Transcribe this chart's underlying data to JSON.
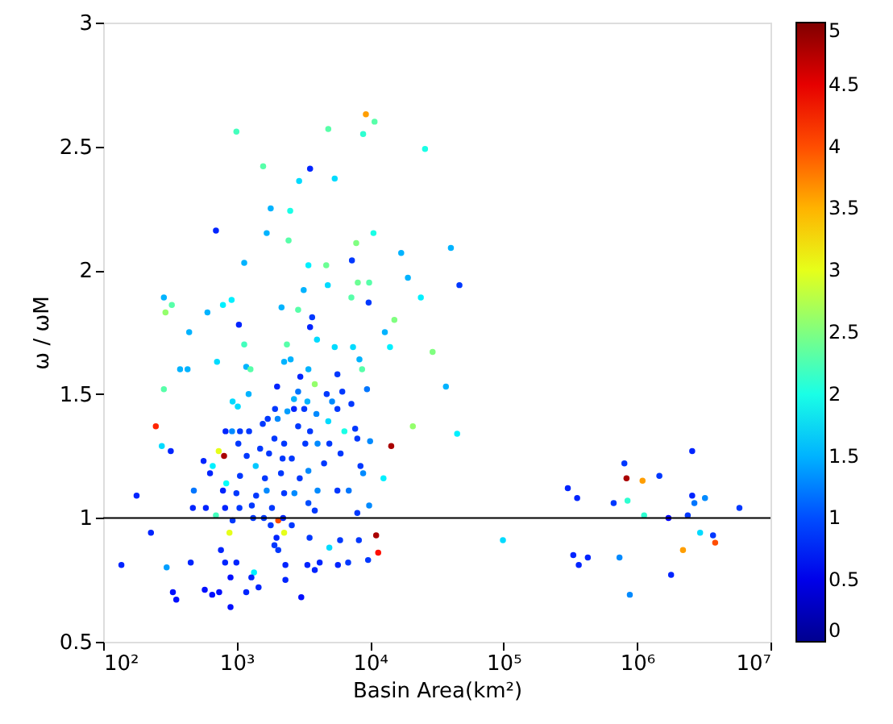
{
  "chart_data": {
    "type": "scatter",
    "xlabel": "Basin Area(km²)",
    "ylabel": "ω / ωM",
    "log": "x",
    "grid": false,
    "marker": "circle",
    "xlim": [
      100,
      10000000
    ],
    "ylim": [
      0.5,
      3
    ],
    "xticks": [
      {
        "value": 100,
        "label": "10²"
      },
      {
        "value": 1000,
        "label": "10³"
      },
      {
        "value": 10000,
        "label": "10⁴"
      },
      {
        "value": 100000,
        "label": "10⁵"
      },
      {
        "value": 1000000,
        "label": "10⁶"
      },
      {
        "value": 10000000,
        "label": "10⁷"
      }
    ],
    "yticks": [
      0.5,
      1,
      1.5,
      2,
      2.5,
      3
    ],
    "clim": [
      0,
      5
    ],
    "cticks": [
      0,
      0.5,
      1,
      1.5,
      2,
      2.5,
      3,
      3.5,
      4,
      4.5,
      5
    ],
    "ref_lines": [
      {
        "axis": "y",
        "value": 1,
        "color": "#000000"
      }
    ],
    "series": [
      {
        "x": [
          9300,
          4860,
          10800,
          8870,
          996,
          25800,
          1580,
          3550,
          2940,
          5430,
          1800,
          2520,
          700,
          1680,
          2450,
          10600,
          7870,
          40300,
          17100,
          7310,
          4690,
          3450,
          1140,
          46700,
          19200,
          4820,
          8090,
          9840,
          3180,
          285,
          327,
          293,
          604,
          790,
          917,
          2170,
          9750,
          7240,
          24000,
          15200,
          1040,
          3550,
          3680,
          2890,
          441,
          1140,
          2380,
          4000,
          5430,
          7450,
          12900,
          14100,
          29400,
          713,
          377,
          429,
          1180,
          1270,
          2270,
          2540,
          3450,
          5690,
          8320,
          8710,
          285,
          3000,
          3850,
          2010,
          37000,
          9480,
          933,
          1020,
          1230,
          2690,
          2890,
          4730,
          6190,
          7240,
          5190,
          3390,
          1940,
          2400,
          2690,
          3210,
          3960,
          5690,
          1710,
          248,
          826,
          924,
          1060,
          1240,
          1570,
          2030,
          2890,
          3550,
          4860,
          6420,
          7730,
          20900,
          44900,
          275,
          321,
          805,
          734,
          1030,
          1500,
          1920,
          2270,
          3270,
          4040,
          4950,
          8020,
          10000,
          14400,
          566,
          662,
          1190,
          1750,
          2210,
          2590,
          1390,
          2150,
          2970,
          3450,
          4520,
          6010,
          8470,
          8870,
          12600,
          632,
          836,
          1060,
          1630,
          178,
          478,
          790,
          996,
          1400,
          1680,
          2270,
          2710,
          4040,
          5690,
          6920,
          470,
          588,
          820,
          1050,
          1300,
          1840,
          3450,
          3850,
          8020,
          9840,
          700,
          933,
          1330,
          2050,
          1600,
          2230,
          884,
          2270,
          228,
          1800,
          2590,
          1990,
          763,
          1920,
          3520,
          4950,
          5960,
          8240,
          11100,
          11500,
          9660,
          2050,
          137,
          299,
          453,
          820,
          996,
          1350,
          2320,
          3390,
          4190,
          5740,
          6850,
          3850,
          900,
          1290,
          2320,
          577,
          740,
          656,
          333,
          353,
          1460,
          1180,
          3050,
          900,
          98900,
          303000,
          356000,
          333000,
          366000,
          428000,
          668000,
          804000,
          834000,
          849000,
          739000,
          883000,
          1100000,
          1130000,
          1470000,
          1720000,
          1800000,
          2210000,
          2400000,
          2590000,
          2590000,
          2690000,
          2970000,
          3230000,
          3710000,
          3850000,
          5850000
        ],
        "values": [
          2.63,
          2.57,
          2.6,
          2.55,
          2.56,
          2.49,
          2.42,
          2.41,
          2.36,
          2.37,
          2.25,
          2.24,
          2.16,
          2.15,
          2.12,
          2.15,
          2.11,
          2.09,
          2.07,
          2.04,
          2.02,
          2.02,
          2.03,
          1.94,
          1.97,
          1.94,
          1.95,
          1.95,
          1.92,
          1.89,
          1.86,
          1.83,
          1.83,
          1.86,
          1.88,
          1.85,
          1.87,
          1.89,
          1.89,
          1.8,
          1.78,
          1.77,
          1.81,
          1.84,
          1.75,
          1.7,
          1.7,
          1.72,
          1.69,
          1.69,
          1.75,
          1.69,
          1.67,
          1.63,
          1.6,
          1.6,
          1.61,
          1.6,
          1.63,
          1.64,
          1.6,
          1.58,
          1.64,
          1.6,
          1.52,
          1.57,
          1.54,
          1.53,
          1.53,
          1.52,
          1.47,
          1.45,
          1.5,
          1.48,
          1.51,
          1.5,
          1.51,
          1.46,
          1.47,
          1.47,
          1.44,
          1.43,
          1.44,
          1.44,
          1.42,
          1.44,
          1.4,
          1.37,
          1.35,
          1.35,
          1.35,
          1.35,
          1.38,
          1.4,
          1.37,
          1.35,
          1.39,
          1.35,
          1.36,
          1.37,
          1.34,
          1.29,
          1.27,
          1.25,
          1.27,
          1.3,
          1.28,
          1.32,
          1.3,
          1.3,
          1.3,
          1.3,
          1.32,
          1.31,
          1.29,
          1.23,
          1.21,
          1.25,
          1.26,
          1.24,
          1.24,
          1.21,
          1.18,
          1.16,
          1.19,
          1.22,
          1.26,
          1.21,
          1.18,
          1.16,
          1.18,
          1.14,
          1.17,
          1.16,
          1.09,
          1.11,
          1.11,
          1.1,
          1.09,
          1.11,
          1.1,
          1.1,
          1.11,
          1.11,
          1.11,
          1.04,
          1.04,
          1.04,
          1.04,
          1.05,
          1.04,
          1.06,
          1.03,
          1.02,
          1.05,
          1.01,
          0.99,
          1.0,
          0.99,
          1.0,
          1.0,
          0.94,
          0.94,
          0.94,
          0.97,
          0.97,
          0.92,
          0.87,
          0.89,
          0.92,
          0.88,
          0.91,
          0.91,
          0.93,
          0.86,
          0.83,
          0.87,
          0.81,
          0.8,
          0.82,
          0.82,
          0.82,
          0.78,
          0.81,
          0.81,
          0.82,
          0.81,
          0.82,
          0.79,
          0.76,
          0.76,
          0.75,
          0.71,
          0.7,
          0.69,
          0.7,
          0.67,
          0.72,
          0.7,
          0.68,
          0.64,
          0.91,
          1.12,
          1.08,
          0.85,
          0.81,
          0.84,
          1.06,
          1.22,
          1.16,
          1.07,
          0.84,
          0.69,
          1.15,
          1.01,
          1.17,
          1.0,
          0.77,
          0.87,
          1.01,
          1.27,
          1.09,
          1.06,
          0.94,
          1.08,
          0.93,
          0.9,
          1.04
        ],
        "cvalues": [
          3.6,
          2.3,
          2.3,
          2.1,
          2.2,
          2.0,
          2.3,
          0.8,
          1.7,
          1.7,
          1.5,
          2.0,
          0.8,
          1.5,
          2.3,
          2.0,
          2.5,
          1.5,
          1.5,
          0.9,
          2.4,
          1.8,
          1.5,
          0.9,
          1.5,
          1.7,
          2.4,
          2.3,
          1.5,
          1.5,
          2.3,
          2.6,
          1.5,
          1.8,
          1.8,
          1.5,
          0.9,
          2.3,
          1.8,
          2.5,
          0.8,
          0.8,
          0.9,
          2.3,
          1.5,
          2.2,
          2.3,
          1.7,
          1.7,
          1.7,
          1.5,
          1.8,
          2.5,
          1.7,
          1.5,
          1.5,
          1.5,
          2.3,
          1.5,
          1.5,
          1.5,
          0.9,
          1.5,
          2.3,
          2.3,
          0.8,
          2.6,
          0.8,
          1.5,
          1.2,
          1.7,
          1.7,
          1.5,
          1.5,
          1.2,
          0.9,
          0.9,
          0.9,
          1.3,
          1.5,
          0.9,
          1.4,
          0.8,
          0.9,
          1.3,
          0.9,
          0.9,
          4.2,
          0.8,
          1.3,
          0.9,
          0.9,
          0.9,
          1.3,
          0.9,
          0.9,
          1.7,
          2.0,
          0.9,
          2.6,
          1.8,
          1.7,
          0.8,
          4.8,
          3.0,
          0.9,
          0.9,
          0.9,
          0.9,
          0.9,
          1.3,
          0.9,
          0.9,
          1.3,
          4.8,
          0.8,
          1.8,
          0.9,
          0.9,
          0.9,
          0.9,
          1.6,
          0.9,
          0.9,
          1.3,
          0.9,
          0.9,
          0.9,
          1.3,
          1.8,
          0.8,
          1.9,
          0.9,
          0.9,
          0.8,
          1.2,
          0.8,
          0.9,
          0.9,
          1.3,
          0.9,
          1.3,
          1.3,
          0.9,
          1.2,
          0.8,
          0.8,
          0.8,
          0.9,
          0.9,
          0.9,
          1.0,
          0.9,
          0.9,
          1.3,
          2.2,
          0.9,
          0.9,
          4.0,
          0.9,
          0.8,
          3.0,
          3.0,
          0.8,
          0.9,
          0.9,
          0.8,
          0.8,
          0.9,
          0.9,
          1.7,
          0.9,
          0.9,
          4.8,
          4.3,
          0.9,
          0.9,
          0.8,
          1.4,
          0.8,
          0.8,
          0.8,
          1.8,
          0.8,
          0.8,
          0.8,
          0.8,
          0.9,
          0.8,
          0.7,
          0.8,
          0.8,
          0.7,
          0.7,
          0.7,
          0.7,
          0.7,
          0.8,
          0.8,
          0.7,
          0.7,
          1.7,
          0.8,
          0.8,
          0.8,
          0.8,
          0.8,
          0.9,
          0.9,
          4.8,
          2.1,
          1.3,
          1.3,
          3.6,
          2.1,
          0.9,
          0.6,
          0.8,
          3.6,
          0.9,
          0.8,
          0.8,
          1.2,
          1.7,
          1.3,
          0.9,
          4.0,
          0.9
        ]
      }
    ]
  }
}
